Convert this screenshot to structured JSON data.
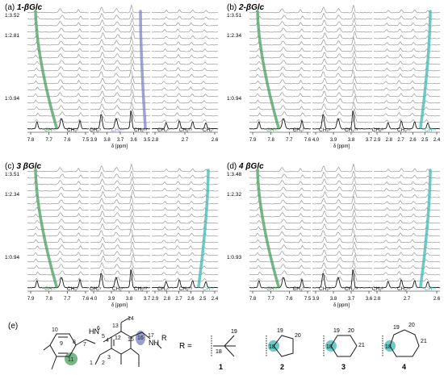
{
  "colors": {
    "green": "#4a9e5c",
    "blue": "#7d83c6",
    "cyan": "#3fb8b4",
    "trace": "#1a1a1a",
    "stacked": "#8a8a8a"
  },
  "panels": [
    {
      "id": "a",
      "label": "(a)",
      "compound": "1-βGlc",
      "ratios": [
        "1:3.52",
        "1:2.81",
        "1:0.94"
      ],
      "axis_unit": "δ [ppm]",
      "tick_groups": [
        [
          "7.8",
          "7.7",
          "7.6",
          "7.5"
        ],
        [
          "3.9",
          "3.8",
          "3.7",
          "3.6",
          "3.5"
        ],
        [
          "2.8",
          "2.7",
          "2.6"
        ]
      ],
      "peaks": [
        "CH¹¹",
        "CH₃¹",
        "CH₂⁵",
        "CH₃¹⁶",
        "CH₂¹³",
        "CH₂²",
        "CH₂¹⁵",
        "CH₂⁷"
      ],
      "tracked_color": "blue"
    },
    {
      "id": "b",
      "label": "(b)",
      "compound": "2-βGlc",
      "ratios": [
        "1:3.51",
        "1:2.34",
        "1:0.94"
      ],
      "axis_unit": "δ [ppm]",
      "tick_groups": [
        [
          "7.9",
          "7.8",
          "7.7",
          "7.6"
        ],
        [
          "4.0",
          "3.9",
          "3.8",
          "3.7"
        ],
        [
          "2.9",
          "2.8",
          "2.7",
          "2.6",
          "2.5",
          "2.4"
        ]
      ],
      "peaks": [
        "CH¹¹",
        "CH₃¹",
        "CH₂⁵",
        "CH₂¹³",
        "CH₂²",
        "CH₂¹⁵",
        "CH¹⁸"
      ],
      "tracked_color": "cyan"
    },
    {
      "id": "c",
      "label": "(c)",
      "compound": "3 βGlc",
      "ratios": [
        "1:3.51",
        "1:2.34",
        "1:0.94"
      ],
      "axis_unit": "δ [ppm]",
      "tick_groups": [
        [
          "7.9",
          "7.8",
          "7.7",
          "7.6"
        ],
        [
          "4.0",
          "3.9",
          "3.8",
          "3.7"
        ],
        [
          "2.9",
          "2.8",
          "2.7",
          "2.6",
          "2.5",
          "2.4"
        ]
      ],
      "peaks": [
        "CH¹¹",
        "CH₃¹",
        "CH₂⁵",
        "CH₂⁷",
        "CH₂¹³",
        "CH₂²",
        "CH₂¹⁵",
        "CH¹⁸"
      ],
      "tracked_color": "cyan"
    },
    {
      "id": "d",
      "label": "(d)",
      "compound": "4 βGlc",
      "ratios": [
        "1:3.48",
        "1:2.32",
        "1:0.93"
      ],
      "axis_unit": "δ [ppm]",
      "tick_groups": [
        [
          "7.8",
          "7.7",
          "7.6",
          "7.5"
        ],
        [
          "3.9",
          "3.8",
          "3.7",
          "3.6"
        ],
        [
          "2.8",
          "2.7",
          "2.6"
        ]
      ],
      "peaks": [
        "CH¹¹",
        "CH₃¹",
        "CH₂⁵",
        "CH₂¹³",
        "CH₂²",
        "CH₂¹⁵",
        "CH¹⁸"
      ],
      "tracked_color": "cyan"
    }
  ],
  "structure": {
    "label": "(e)",
    "r_equals": "R =",
    "core_atoms": [
      "1",
      "2",
      "3",
      "4",
      "5",
      "6",
      "7",
      "8",
      "9",
      "10",
      "11",
      "12",
      "13",
      "14",
      "15",
      "16",
      "17"
    ],
    "hn_label": "HN",
    "nh_label": "NH",
    "r_label": "R",
    "substituents": [
      {
        "id": "1",
        "atoms": [
          "18",
          "19"
        ]
      },
      {
        "id": "2",
        "atoms": [
          "18",
          "19",
          "20"
        ]
      },
      {
        "id": "3",
        "atoms": [
          "18",
          "19",
          "20",
          "21"
        ]
      },
      {
        "id": "4",
        "atoms": [
          "18",
          "19",
          "20",
          "21"
        ]
      }
    ]
  }
}
